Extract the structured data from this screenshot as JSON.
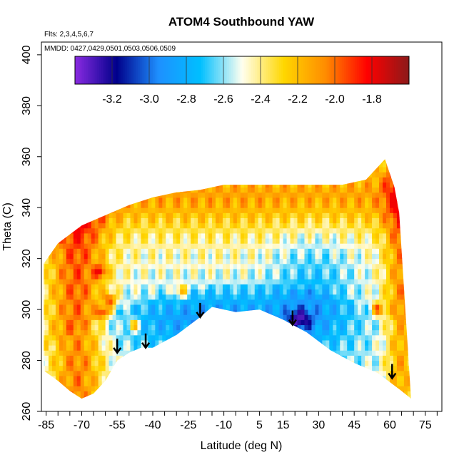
{
  "chart_data": {
    "type": "heatmap",
    "title": "ATOM4 Southbound YAW",
    "annotations": [
      "Flts: 2,3,4,5,6,7",
      "MMDD: 0427,0429,0501,0503,0506,0509"
    ],
    "xlabel": "Latitude (deg N)",
    "ylabel": "Theta (C)",
    "xlim": [
      -87,
      82
    ],
    "ylim": [
      260,
      405
    ],
    "x_ticks": [
      "-85",
      "-70",
      "-55",
      "-40",
      "-25",
      "-10",
      "5",
      "15",
      "30",
      "45",
      "60",
      "75"
    ],
    "x_tick_values": [
      -85,
      -70,
      -55,
      -40,
      -25,
      -10,
      5,
      15,
      30,
      45,
      60,
      75
    ],
    "x_minor_step": 5,
    "y_ticks": [
      "260",
      "280",
      "300",
      "320",
      "340",
      "360",
      "380",
      "400"
    ],
    "y_tick_values": [
      260,
      280,
      300,
      320,
      340,
      360,
      380,
      400
    ],
    "colorbar": {
      "min": -3.4,
      "max": -1.6,
      "tick_labels": [
        "-3.2",
        "-3.0",
        "-2.8",
        "-2.6",
        "-2.4",
        "-2.2",
        "-2.0",
        "-1.8"
      ],
      "tick_values": [
        -3.2,
        -3.0,
        -2.8,
        -2.6,
        -2.4,
        -2.2,
        -2.0,
        -1.8
      ],
      "colors": [
        "#8a2be2",
        "#00008b",
        "#1e90ff",
        "#00bfff",
        "#fffff0",
        "#ffd700",
        "#ff8c00",
        "#ff0000",
        "#8b1a1a"
      ]
    },
    "field_value_range": [
      -3.3,
      -1.8
    ],
    "domain_upper_boundary": [
      [
        -86,
        318
      ],
      [
        -80,
        326
      ],
      [
        -70,
        333
      ],
      [
        -60,
        337
      ],
      [
        -50,
        341
      ],
      [
        -40,
        344
      ],
      [
        -30,
        346
      ],
      [
        -20,
        347
      ],
      [
        -10,
        349
      ],
      [
        0,
        349
      ],
      [
        10,
        349
      ],
      [
        20,
        349
      ],
      [
        30,
        349
      ],
      [
        40,
        349
      ],
      [
        50,
        351
      ],
      [
        55,
        356
      ],
      [
        58,
        359
      ],
      [
        62,
        348
      ],
      [
        64,
        338
      ]
    ],
    "domain_lower_boundary": [
      [
        -86,
        276
      ],
      [
        -80,
        272
      ],
      [
        -75,
        268
      ],
      [
        -70,
        265
      ],
      [
        -65,
        267
      ],
      [
        -60,
        272
      ],
      [
        -55,
        280
      ],
      [
        -50,
        283
      ],
      [
        -45,
        285
      ],
      [
        -40,
        285
      ],
      [
        -30,
        290
      ],
      [
        -20,
        297
      ],
      [
        -15,
        301
      ],
      [
        -5,
        299
      ],
      [
        5,
        300
      ],
      [
        15,
        296
      ],
      [
        25,
        291
      ],
      [
        35,
        284
      ],
      [
        45,
        279
      ],
      [
        55,
        275
      ],
      [
        65,
        268
      ],
      [
        69,
        265
      ]
    ],
    "arrows": [
      {
        "lat": -55,
        "theta": 283
      },
      {
        "lat": -43,
        "theta": 285
      },
      {
        "lat": -20,
        "theta": 297
      },
      {
        "lat": 19,
        "theta": 294
      },
      {
        "lat": 61,
        "theta": 273
      }
    ]
  }
}
